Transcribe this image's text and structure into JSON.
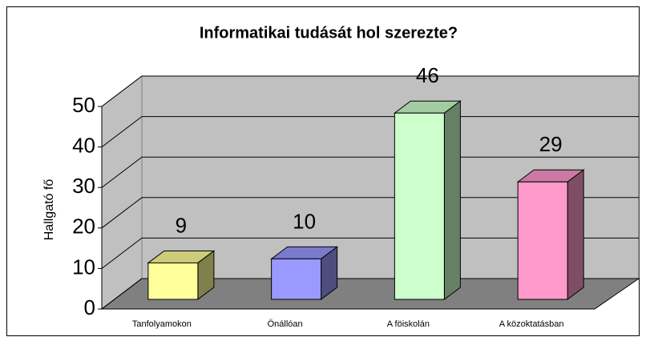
{
  "chart_data": {
    "type": "bar3d",
    "title": "Informatikai tudását hol szerezte?",
    "y_label": "Hallgató fő",
    "categories": [
      "Tanfolyamokon",
      "Önállóan",
      "A föiskolán",
      "A közoktatásban"
    ],
    "values": [
      9,
      10,
      46,
      29
    ],
    "colors": [
      "#ffff99",
      "#9999ff",
      "#ccffcc",
      "#ff99cc"
    ],
    "ylim": [
      0,
      50
    ],
    "yticks": [
      0,
      10,
      20,
      30,
      40,
      50
    ],
    "grid": true
  }
}
